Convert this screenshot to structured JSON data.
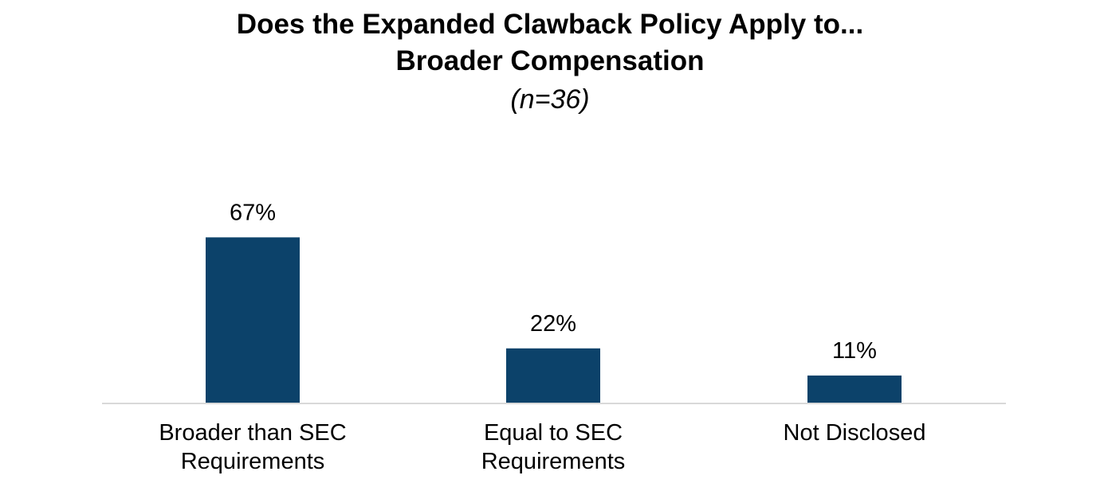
{
  "chart_data": {
    "type": "bar",
    "title": [
      "Does the Expanded Clawback Policy Apply to...",
      "Broader Compensation"
    ],
    "subtitle": "(n=36)",
    "categories": [
      [
        "Broader than SEC",
        "Requirements"
      ],
      [
        "Equal to SEC",
        "Requirements"
      ],
      [
        "Not Disclosed"
      ]
    ],
    "values": [
      67,
      22,
      11
    ],
    "data_labels": [
      "67%",
      "22%",
      "11%"
    ],
    "unit": "%",
    "xlabel": "",
    "ylabel": "",
    "ylim": [
      0,
      100
    ],
    "grid": false,
    "legend": "none",
    "colors": {
      "bar": "#0c426a",
      "axis": "#d9d9d9",
      "text": "#000000"
    }
  }
}
